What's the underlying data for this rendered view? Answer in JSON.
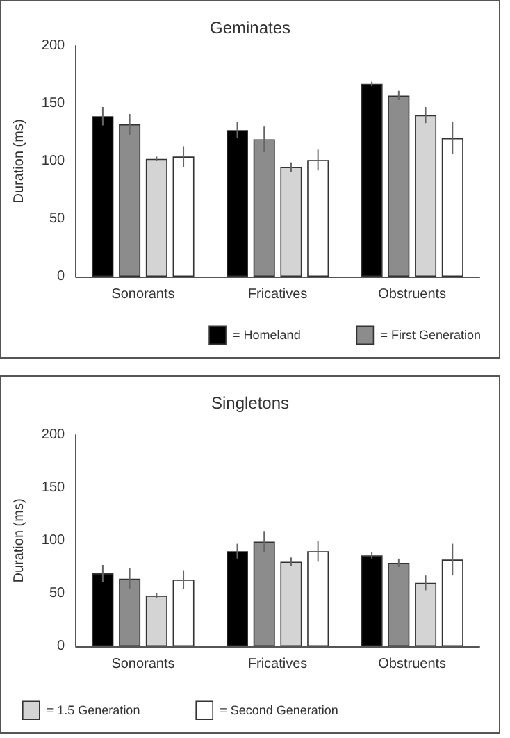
{
  "chart_data": [
    {
      "type": "bar",
      "title": "Geminates",
      "ylabel": "Duration (ms)",
      "categories": [
        "Sonorants",
        "Fricatives",
        "Obstruents"
      ],
      "ylim": [
        0,
        200
      ],
      "yticks": [
        0,
        50,
        100,
        150,
        200
      ],
      "grid": false,
      "legend": "bottom right",
      "series": [
        {
          "name": "= Homeland",
          "color": "#000000",
          "values": [
            139,
            127,
            167
          ],
          "errors": [
            8,
            7,
            2
          ]
        },
        {
          "name": "= First Generation",
          "color": "#8c8c8c",
          "values": [
            132,
            119,
            157
          ],
          "errors": [
            9,
            11,
            4
          ]
        },
        {
          "color": "#d4d4d4",
          "values": [
            102,
            95,
            140
          ],
          "errors": [
            2,
            4,
            7
          ]
        },
        {
          "color": "#ffffff",
          "values": [
            104,
            101,
            120
          ],
          "errors": [
            9,
            9,
            14
          ]
        }
      ]
    },
    {
      "type": "bar",
      "title": "Singletons",
      "ylabel": "Duration (ms)",
      "categories": [
        "Sonorants",
        "Fricatives",
        "Obstruents"
      ],
      "ylim": [
        0,
        200
      ],
      "yticks": [
        0,
        50,
        100,
        150,
        200
      ],
      "grid": false,
      "legend": "bottom left",
      "series": [
        {
          "color": "#000000",
          "values": [
            69,
            90,
            86
          ],
          "errors": [
            8,
            7,
            3
          ]
        },
        {
          "color": "#8c8c8c",
          "values": [
            64,
            99,
            79
          ],
          "errors": [
            10,
            10,
            4
          ]
        },
        {
          "name": "= 1.5 Generation",
          "color": "#d4d4d4",
          "values": [
            48,
            80,
            60
          ],
          "errors": [
            2,
            4,
            7
          ]
        },
        {
          "name": "= Second Generation",
          "color": "#ffffff",
          "values": [
            63,
            90,
            82
          ],
          "errors": [
            9,
            10,
            15
          ]
        }
      ]
    }
  ]
}
